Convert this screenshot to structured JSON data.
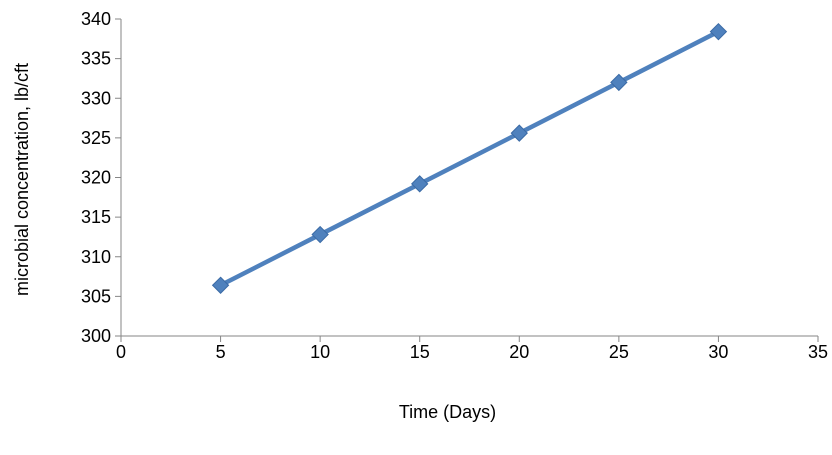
{
  "chart_data": {
    "type": "scatter",
    "title": "",
    "xlabel": "Time (Days)",
    "ylabel": "microbial concentration, lb/cft",
    "xlim": [
      0,
      35
    ],
    "ylim": [
      300,
      340
    ],
    "x_ticks": [
      "0",
      "5",
      "10",
      "15",
      "20",
      "25",
      "30",
      "35"
    ],
    "y_ticks": [
      "300",
      "305",
      "310",
      "315",
      "320",
      "325",
      "330",
      "335",
      "340"
    ],
    "grid": false,
    "legend": "none",
    "marker": "diamond",
    "colors": {
      "series": "#4f81bd",
      "axis": "#868686"
    },
    "series": [
      {
        "x": [
          5,
          10,
          15,
          20,
          25,
          30
        ],
        "y": [
          306.4,
          312.8,
          319.2,
          325.6,
          332.0,
          338.4
        ]
      }
    ]
  }
}
